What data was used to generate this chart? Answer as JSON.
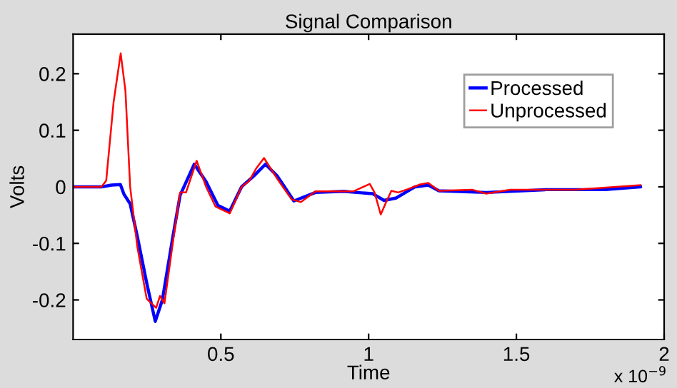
{
  "chart_data": {
    "type": "line",
    "title": "Signal Comparison",
    "xlabel": "Time",
    "ylabel": "Volts",
    "annotations": [
      "x 10$^{−9}$"
    ],
    "xlim": [
      0,
      2
    ],
    "xticks": [
      0.5,
      1,
      1.5,
      2
    ],
    "ylim": [
      -0.27,
      0.27
    ],
    "yticks": [
      -0.2,
      -0.1,
      0,
      0.1,
      0.2
    ],
    "grid": false,
    "legend": "top right",
    "series": [
      {
        "name": "Processed",
        "color": "#0000ff",
        "x": [
          0,
          0.096,
          0.13,
          0.16,
          0.172,
          0.193,
          0.217,
          0.249,
          0.278,
          0.302,
          0.338,
          0.362,
          0.41,
          0.45,
          0.49,
          0.53,
          0.57,
          0.611,
          0.651,
          0.691,
          0.747,
          0.82,
          0.916,
          0.96,
          1.013,
          1.052,
          1.092,
          1.157,
          1.202,
          1.238,
          1.398,
          1.6,
          1.8,
          1.92
        ],
        "values": [
          0,
          0,
          0.003,
          0.004,
          -0.013,
          -0.03,
          -0.087,
          -0.17,
          -0.238,
          -0.2,
          -0.087,
          -0.015,
          0.04,
          0.009,
          -0.033,
          -0.043,
          0,
          0.019,
          0.04,
          0.019,
          -0.025,
          -0.01,
          -0.008,
          -0.01,
          -0.012,
          -0.024,
          -0.02,
          0,
          0.003,
          -0.007,
          -0.01,
          -0.005,
          -0.005,
          0
        ]
      },
      {
        "name": "Unprocessed",
        "color": "#ff0000",
        "x": [
          0,
          0.096,
          0.112,
          0.137,
          0.161,
          0.177,
          0.193,
          0.217,
          0.249,
          0.281,
          0.294,
          0.309,
          0.338,
          0.362,
          0.382,
          0.418,
          0.45,
          0.482,
          0.53,
          0.57,
          0.595,
          0.619,
          0.646,
          0.691,
          0.739,
          0.771,
          0.82,
          0.868,
          0.948,
          1.004,
          1.02,
          1.041,
          1.061,
          1.077,
          1.1,
          1.133,
          1.173,
          1.202,
          1.238,
          1.35,
          1.398,
          1.479,
          1.7,
          1.92
        ],
        "values": [
          0,
          0,
          0.011,
          0.15,
          0.236,
          0.17,
          0,
          -0.105,
          -0.198,
          -0.214,
          -0.193,
          -0.206,
          -0.097,
          -0.01,
          -0.01,
          0.046,
          0,
          -0.035,
          -0.047,
          0,
          0.01,
          0.032,
          0.051,
          0.014,
          -0.022,
          -0.027,
          -0.008,
          -0.008,
          -0.008,
          0.005,
          -0.01,
          -0.049,
          -0.025,
          -0.007,
          -0.01,
          -0.004,
          0.004,
          0.007,
          -0.007,
          -0.005,
          -0.012,
          -0.005,
          -0.005,
          0.003
        ]
      }
    ]
  }
}
